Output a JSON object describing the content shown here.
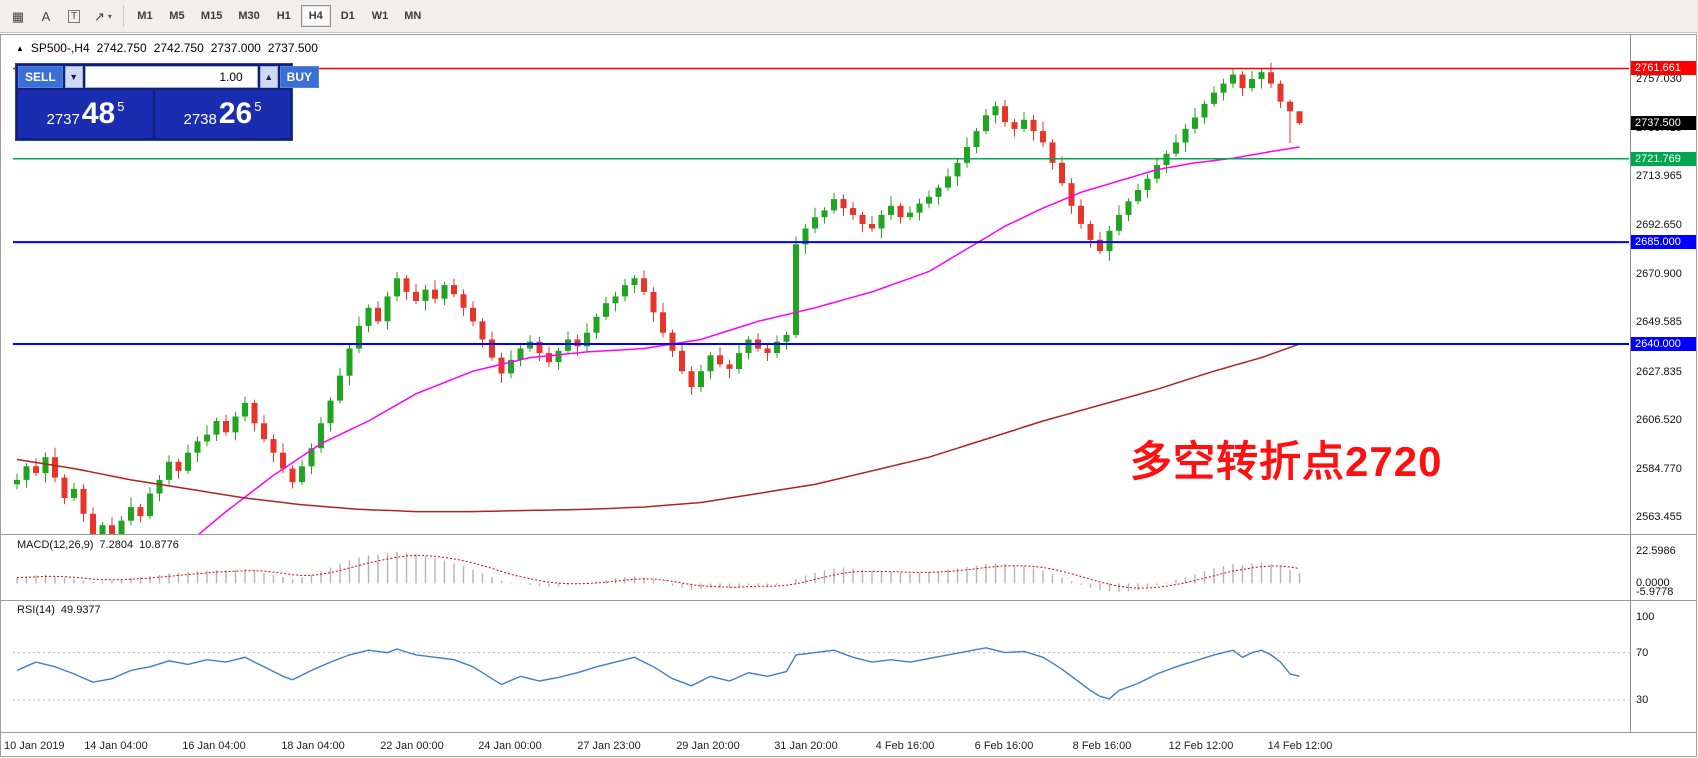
{
  "toolbar": {
    "tools": [
      {
        "name": "grid-tool-icon",
        "glyph": "▦"
      },
      {
        "name": "text-tool-icon",
        "glyph": "A"
      },
      {
        "name": "text-label-tool-icon",
        "glyph": "T",
        "boxed": true
      },
      {
        "name": "arrows-tool-icon",
        "glyph": "↗",
        "chevron": "▾"
      }
    ],
    "timeframes": [
      "M1",
      "M5",
      "M15",
      "M30",
      "H1",
      "H4",
      "D1",
      "W1",
      "MN"
    ],
    "active_timeframe": "H4"
  },
  "chart": {
    "header": {
      "collapse_icon": "▲",
      "symbol": "SP500-,H4",
      "open": "2742.750",
      "high": "2742.750",
      "low": "2737.000",
      "close": "2737.500"
    },
    "trade_panel": {
      "sell_label": "SELL",
      "buy_label": "BUY",
      "volume": "1.00",
      "volume_down_glyph": "▼",
      "volume_up_glyph": "▲",
      "sell_price": {
        "main": "2737",
        "pips": "48",
        "point": "5"
      },
      "buy_price": {
        "main": "2738",
        "pips": "26",
        "point": "5"
      },
      "colors": {
        "panel": "#101f7a",
        "button": "#3a6fd6",
        "price_box": "#1a2cb0"
      }
    },
    "annotation": {
      "text": "多空转折点2720",
      "color": "#ff0f0f"
    }
  },
  "chart_data": {
    "type": "candlestick",
    "symbol": "SP500-",
    "timeframe": "H4",
    "title": "SP500-,H4",
    "current_bar": {
      "open": 2742.75,
      "high": 2742.75,
      "low": 2737.0,
      "close": 2737.5
    },
    "up_color": "#1fa51f",
    "down_color": "#e8352a",
    "first_open": 2578,
    "closes": [
      2580,
      2586,
      2583,
      2590,
      2581,
      2572,
      2576,
      2565,
      2556,
      2560,
      2554,
      2562,
      2568,
      2564,
      2574,
      2580,
      2588,
      2584,
      2592,
      2597,
      2600,
      2606,
      2601,
      2608,
      2614,
      2605,
      2598,
      2592,
      2585,
      2579,
      2586,
      2594,
      2605,
      2615,
      2626,
      2638,
      2648,
      2656,
      2650,
      2661,
      2669,
      2663,
      2659,
      2664,
      2660,
      2666,
      2662,
      2656,
      2650,
      2642,
      2634,
      2627,
      2633,
      2638,
      2641,
      2636,
      2632,
      2637,
      2642,
      2639,
      2645,
      2652,
      2658,
      2661,
      2666,
      2669,
      2663,
      2654,
      2645,
      2637,
      2628,
      2621,
      2628,
      2635,
      2631,
      2629,
      2636,
      2642,
      2638,
      2636,
      2641,
      2644,
      2684,
      2691,
      2696,
      2699,
      2704,
      2700,
      2697,
      2693,
      2691,
      2697,
      2701,
      2696,
      2698,
      2702,
      2705,
      2709,
      2714,
      2720,
      2727,
      2734,
      2741,
      2745,
      2738,
      2735,
      2739,
      2734,
      2729,
      2720,
      2711,
      2701,
      2693,
      2686,
      2681,
      2690,
      2697,
      2703,
      2708,
      2713,
      2719,
      2724,
      2729,
      2735,
      2740,
      2746,
      2751,
      2755,
      2759,
      2753,
      2757,
      2760,
      2755,
      2747,
      2742.75,
      2737.5
    ],
    "wick_up": [
      4,
      2,
      5,
      3,
      6,
      2,
      4,
      3
    ],
    "wick_dn": [
      3,
      5,
      2,
      6,
      3,
      4,
      2,
      5
    ],
    "wick_overrides": {
      "134": {
        "up": 1,
        "dn": 14
      },
      "135": {
        "up": 0,
        "dn": 0.7
      }
    },
    "price_axis": {
      "max": 2776.0,
      "min": 2556.1,
      "ticks": [
        2757.03,
        2735.415,
        2713.965,
        2692.65,
        2670.9,
        2649.585,
        2627.835,
        2606.52,
        2584.77,
        2563.455
      ]
    },
    "hlines": [
      {
        "price": 2761.661,
        "color": "#ff0000",
        "label": "2761.661",
        "width": 1.5
      },
      {
        "price": 2737.5,
        "color": "#000000",
        "label": "2737.500",
        "width": 0,
        "label_only": true
      },
      {
        "price": 2721.769,
        "color": "#00a650",
        "label": "2721.769",
        "width": 1.5
      },
      {
        "price": 2685.0,
        "color": "#0000ff",
        "label": "2685.000",
        "width": 2
      },
      {
        "price": 2640.0,
        "color": "#0000ff",
        "label": "2640.000",
        "width": 2
      }
    ],
    "ma_fast": {
      "name": "fast moving average",
      "color": "#ff00ff",
      "points": [
        [
          18,
          2552
        ],
        [
          22,
          2566
        ],
        [
          27,
          2582
        ],
        [
          32,
          2596
        ],
        [
          37,
          2606
        ],
        [
          42,
          2618
        ],
        [
          48,
          2628
        ],
        [
          54,
          2634
        ],
        [
          60,
          2636.5
        ],
        [
          66,
          2638
        ],
        [
          72,
          2642
        ],
        [
          78,
          2650
        ],
        [
          84,
          2656
        ],
        [
          90,
          2663
        ],
        [
          96,
          2672
        ],
        [
          100,
          2682
        ],
        [
          104,
          2692
        ],
        [
          108,
          2700
        ],
        [
          112,
          2707
        ],
        [
          116,
          2712
        ],
        [
          120,
          2717
        ],
        [
          124,
          2720
        ],
        [
          128,
          2722
        ],
        [
          132,
          2725
        ],
        [
          135,
          2727
        ]
      ]
    },
    "ma_slow": {
      "name": "slow moving average",
      "color": "#b22222",
      "points": [
        [
          0,
          2589
        ],
        [
          6,
          2585
        ],
        [
          12,
          2580
        ],
        [
          18,
          2576
        ],
        [
          24,
          2572
        ],
        [
          30,
          2569
        ],
        [
          36,
          2567
        ],
        [
          42,
          2566
        ],
        [
          48,
          2566
        ],
        [
          54,
          2566.5
        ],
        [
          60,
          2567
        ],
        [
          66,
          2568
        ],
        [
          72,
          2570
        ],
        [
          78,
          2574
        ],
        [
          84,
          2578
        ],
        [
          90,
          2584
        ],
        [
          96,
          2590
        ],
        [
          102,
          2598
        ],
        [
          108,
          2606
        ],
        [
          114,
          2613
        ],
        [
          120,
          2620
        ],
        [
          126,
          2628
        ],
        [
          131,
          2634
        ],
        [
          135,
          2640
        ]
      ]
    },
    "macd": {
      "label": "MACD(12,26,9)",
      "value": "7.2804",
      "signal_value": "10.8776",
      "range": {
        "max": 33.05,
        "min": -10.86
      },
      "axis": [
        {
          "v": 22.5986,
          "t": "22.5986"
        },
        {
          "v": 0,
          "t": "0.0000"
        },
        {
          "v": -5.9778,
          "t": "-5.9778"
        }
      ],
      "hist_color": "#b4b4b4",
      "signal_color": "#e00000",
      "hist": [
        4,
        5,
        5.5,
        6,
        5,
        4,
        3,
        2,
        1,
        1.5,
        2,
        3,
        4,
        4.5,
        5,
        6,
        7,
        7.5,
        8,
        8.5,
        9,
        9.5,
        9,
        9.5,
        10,
        9,
        7.5,
        6,
        4.5,
        3,
        4,
        6,
        8.5,
        11,
        13.5,
        16,
        18,
        19.5,
        20,
        21,
        22,
        21.5,
        20.5,
        19,
        17.5,
        16,
        14,
        12,
        9.5,
        7,
        4.5,
        2,
        0.5,
        -0.5,
        -1,
        -2,
        -2.5,
        -2,
        -1,
        -0.5,
        0.5,
        1.5,
        2.5,
        3.5,
        4.5,
        5,
        4,
        2.5,
        0.5,
        -1.5,
        -3,
        -4.5,
        -4,
        -3,
        -3.5,
        -3.5,
        -2.5,
        -1,
        -1.5,
        -2,
        -1,
        0,
        3,
        5.5,
        7.5,
        9,
        10.5,
        11,
        10.5,
        9.5,
        8.5,
        8,
        8,
        7.5,
        7,
        7.5,
        8,
        8.5,
        9.5,
        10.5,
        11.5,
        12.5,
        13.5,
        14,
        13.5,
        12.5,
        12,
        10.5,
        9,
        6.5,
        4,
        1.5,
        -1,
        -3,
        -4.5,
        -5.5,
        -6,
        -5.5,
        -4.5,
        -3,
        -1.5,
        0.5,
        2.5,
        4.5,
        6.5,
        8.5,
        10.5,
        12,
        13.5,
        13,
        14,
        14.5,
        13.5,
        12,
        9.5,
        7.28
      ]
    },
    "rsi": {
      "label": "RSI(14)",
      "value": "49.9377",
      "color": "#3f7fca",
      "range": {
        "max": 113.5,
        "min": 3.0
      },
      "levels": [
        70,
        30
      ],
      "axis": [
        {
          "v": 100,
          "t": "100"
        },
        {
          "v": 70,
          "t": "70"
        },
        {
          "v": 30,
          "t": "30"
        }
      ],
      "points": [
        [
          0,
          55
        ],
        [
          2,
          62
        ],
        [
          4,
          58
        ],
        [
          6,
          52
        ],
        [
          8,
          45
        ],
        [
          10,
          48
        ],
        [
          12,
          55
        ],
        [
          14,
          58
        ],
        [
          16,
          63
        ],
        [
          18,
          60
        ],
        [
          20,
          64
        ],
        [
          22,
          62
        ],
        [
          24,
          66
        ],
        [
          26,
          58
        ],
        [
          28,
          50
        ],
        [
          29,
          47
        ],
        [
          31,
          55
        ],
        [
          33,
          62
        ],
        [
          35,
          68
        ],
        [
          37,
          72
        ],
        [
          39,
          70
        ],
        [
          40,
          73
        ],
        [
          42,
          68
        ],
        [
          44,
          66
        ],
        [
          46,
          64
        ],
        [
          48,
          58
        ],
        [
          50,
          48
        ],
        [
          51,
          43
        ],
        [
          53,
          50
        ],
        [
          55,
          46
        ],
        [
          57,
          49
        ],
        [
          59,
          53
        ],
        [
          61,
          58
        ],
        [
          63,
          62
        ],
        [
          65,
          66
        ],
        [
          67,
          58
        ],
        [
          69,
          48
        ],
        [
          71,
          42
        ],
        [
          73,
          50
        ],
        [
          75,
          46
        ],
        [
          77,
          53
        ],
        [
          79,
          50
        ],
        [
          81,
          54
        ],
        [
          82,
          68
        ],
        [
          84,
          70
        ],
        [
          86,
          72
        ],
        [
          88,
          66
        ],
        [
          90,
          62
        ],
        [
          92,
          64
        ],
        [
          94,
          62
        ],
        [
          96,
          65
        ],
        [
          98,
          68
        ],
        [
          100,
          71
        ],
        [
          102,
          74
        ],
        [
          104,
          70
        ],
        [
          106,
          71
        ],
        [
          108,
          66
        ],
        [
          110,
          56
        ],
        [
          112,
          44
        ],
        [
          113,
          38
        ],
        [
          114,
          33
        ],
        [
          115,
          31
        ],
        [
          116,
          38
        ],
        [
          118,
          44
        ],
        [
          120,
          52
        ],
        [
          122,
          58
        ],
        [
          124,
          63
        ],
        [
          126,
          68
        ],
        [
          128,
          72
        ],
        [
          129,
          66
        ],
        [
          130,
          70
        ],
        [
          131,
          72
        ],
        [
          132,
          68
        ],
        [
          133,
          62
        ],
        [
          134,
          52
        ],
        [
          135,
          50
        ]
      ]
    },
    "time_labels": [
      "10 Jan 2019",
      "14 Jan 04:00",
      "16 Jan 04:00",
      "18 Jan 04:00",
      "22 Jan 00:00",
      "24 Jan 00:00",
      "27 Jan 23:00",
      "29 Jan 20:00",
      "31 Jan 20:00",
      "4 Feb 16:00",
      "6 Feb 16:00",
      "8 Feb 16:00",
      "12 Feb 12:00",
      "14 Feb 12:00"
    ]
  }
}
